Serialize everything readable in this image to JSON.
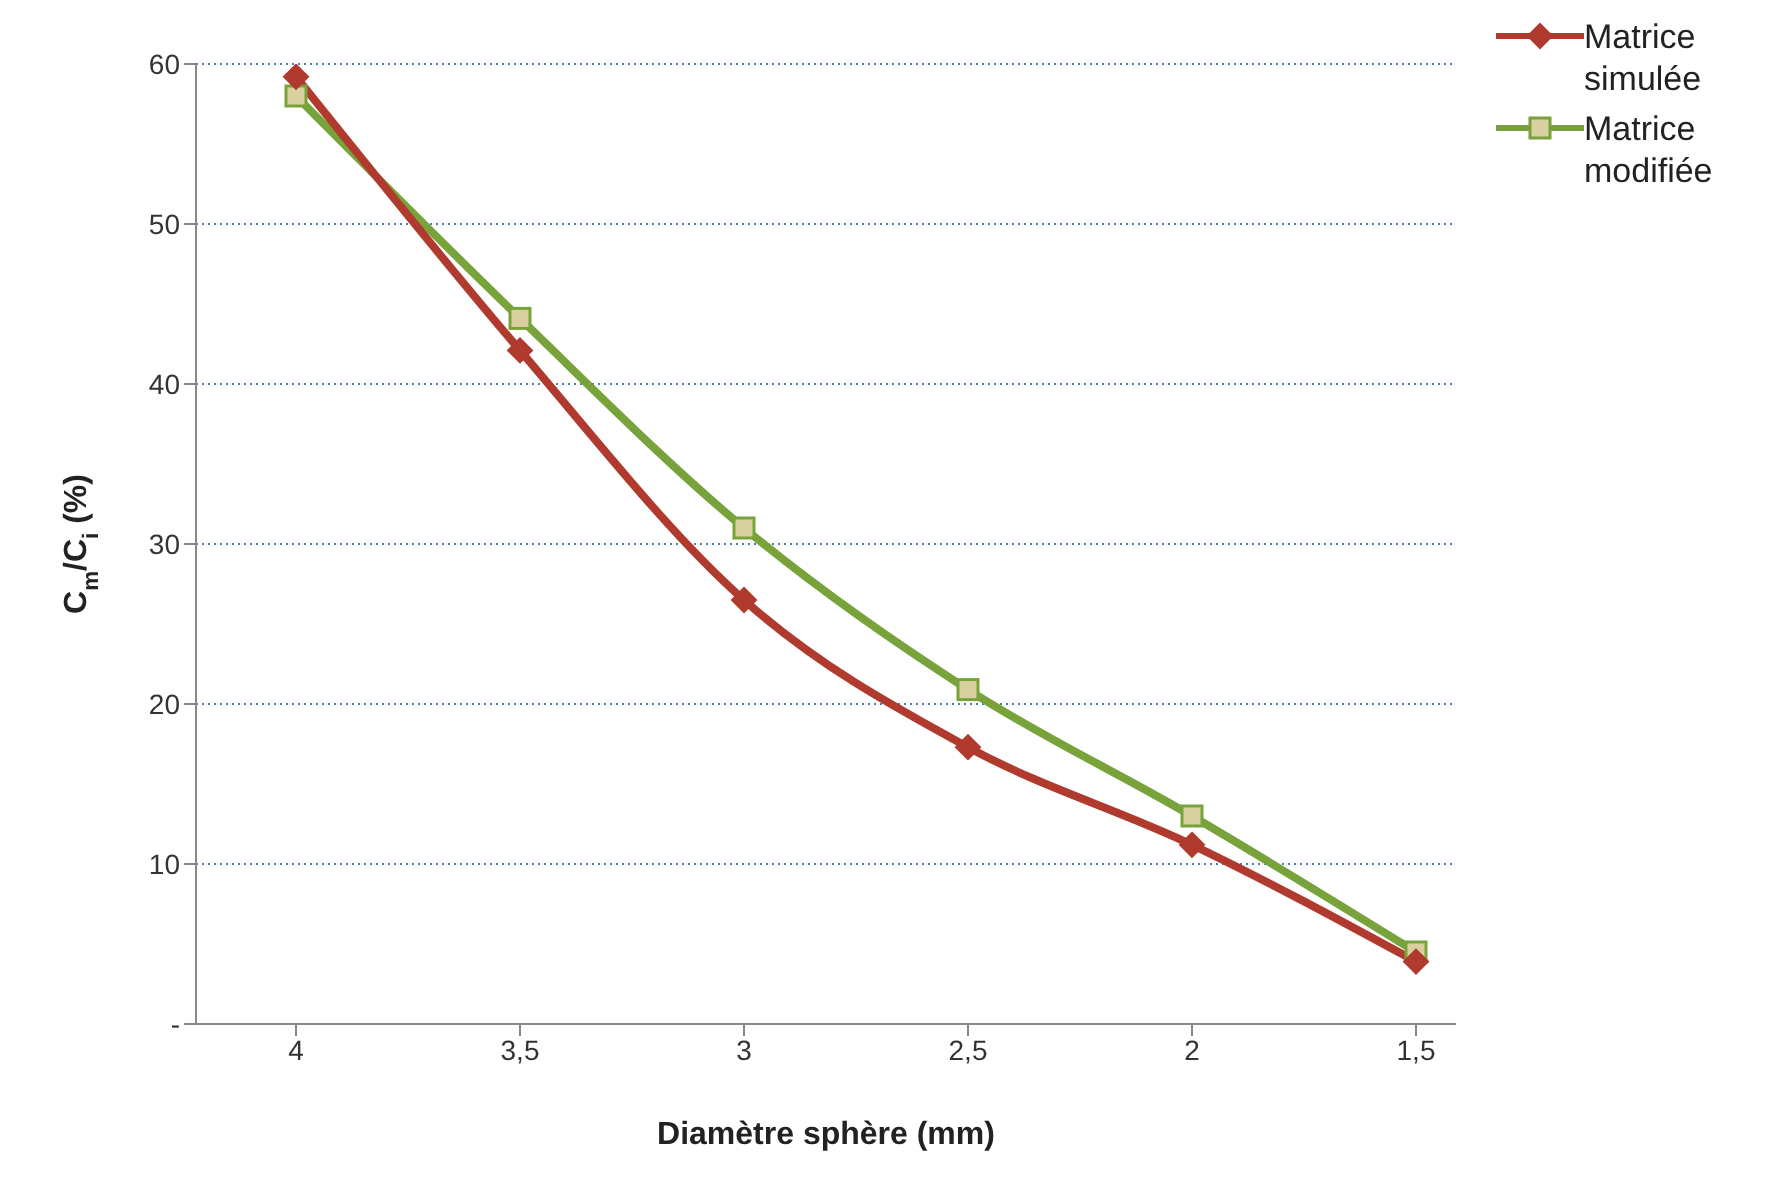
{
  "chart_data": {
    "type": "line",
    "xlabel": "Diamètre sphère (mm)",
    "ylabel": "C$_{m}$/C$_{i}$ (%)",
    "categories": [
      "4",
      "3,5",
      "3",
      "2,5",
      "2",
      "1,5"
    ],
    "series": [
      {
        "name": "Matrice simulée",
        "color": "#b03a2e",
        "marker": "diamond",
        "values": [
          59.2,
          42.1,
          26.5,
          17.3,
          11.2,
          3.9
        ]
      },
      {
        "name": "Matrice modifiée",
        "color": "#77a33a",
        "marker": "square",
        "values": [
          58,
          44.1,
          31,
          20.9,
          13,
          4.5
        ]
      }
    ],
    "ylim": [
      0,
      60
    ],
    "yticks": [
      {
        "value": 0,
        "label": "-"
      },
      10,
      20,
      30,
      40,
      50,
      60
    ],
    "grid": "y",
    "legend": "top right",
    "line_style": "solid"
  }
}
